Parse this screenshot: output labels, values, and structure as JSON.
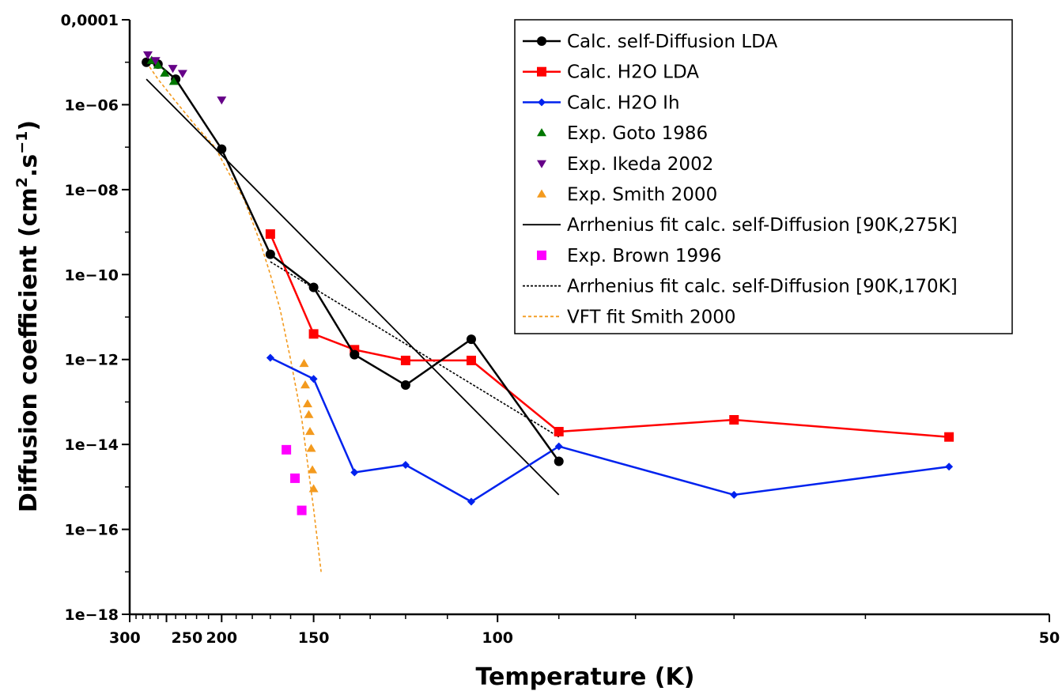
{
  "chart_data": {
    "type": "line",
    "title": "",
    "xlabel": "Temperature (K)",
    "ylabel": "Diffusion coefficient (cm²·s⁻¹)",
    "ylabel_parts": {
      "main": "Diffusion coefficient (cm",
      "sup1": "2",
      "mid": ".s",
      "sup2": "−1",
      "end": ")"
    },
    "x_scale": "reciprocal",
    "y_scale": "log",
    "xlim": [
      50,
      300
    ],
    "ylim": [
      1e-18,
      0.0001
    ],
    "x_ticks": [
      {
        "value": 300,
        "label": "300"
      },
      {
        "value": 250,
        "label": "250"
      },
      {
        "value": 200,
        "label": "200"
      },
      {
        "value": 150,
        "label": "150"
      },
      {
        "value": 100,
        "label": "100"
      },
      {
        "value": 50,
        "label": "50"
      }
    ],
    "x_minor_ticks": [
      290,
      280,
      270,
      260,
      240,
      230,
      220,
      210,
      190,
      180,
      170,
      160,
      140,
      130,
      120,
      110,
      90,
      80,
      70,
      60
    ],
    "y_ticks": [
      {
        "value": 0.0001,
        "label": "0,0001"
      },
      {
        "value": 1e-06,
        "label": "1e−06"
      },
      {
        "value": 1e-08,
        "label": "1e−08"
      },
      {
        "value": 1e-10,
        "label": "1e−10"
      },
      {
        "value": 1e-12,
        "label": "1e−12"
      },
      {
        "value": 1e-14,
        "label": "1e−14"
      },
      {
        "value": 1e-16,
        "label": "1e−16"
      },
      {
        "value": 1e-18,
        "label": "1e−18"
      }
    ],
    "legend_position": "top-right",
    "series": [
      {
        "name": "Calc. self-Diffusion LDA",
        "style": "line-marker",
        "color": "#000000",
        "marker": "circle",
        "dash": "none",
        "points": [
          [
            275,
            1e-05
          ],
          [
            260,
            9e-06
          ],
          [
            240,
            4e-06
          ],
          [
            200,
            9e-08
          ],
          [
            170,
            3e-10
          ],
          [
            150,
            5e-11
          ],
          [
            135,
            1.3e-12
          ],
          [
            120,
            2.5e-13
          ],
          [
            105,
            3e-12
          ],
          [
            90,
            4e-15
          ]
        ]
      },
      {
        "name": "Calc. H2O LDA",
        "style": "line-marker",
        "color": "#ff0000",
        "marker": "square",
        "dash": "none",
        "points": [
          [
            170,
            9e-10
          ],
          [
            150,
            4e-12
          ],
          [
            135,
            1.7e-12
          ],
          [
            120,
            9.5e-13
          ],
          [
            105,
            9.5e-13
          ],
          [
            90,
            2e-14
          ],
          [
            70,
            3.8e-14
          ],
          [
            55,
            1.5e-14
          ]
        ]
      },
      {
        "name": "Calc. H2O Ih",
        "style": "line-marker",
        "color": "#0022ee",
        "marker": "diamond",
        "dash": "none",
        "points": [
          [
            170,
            1.1e-12
          ],
          [
            150,
            3.5e-13
          ],
          [
            135,
            2.2e-15
          ],
          [
            120,
            3.3e-15
          ],
          [
            105,
            4.5e-16
          ],
          [
            90,
            9e-15
          ],
          [
            70,
            6.5e-16
          ],
          [
            55,
            3e-15
          ]
        ]
      },
      {
        "name": "Exp. Goto 1986",
        "style": "marker",
        "color": "#007700",
        "marker": "triangle-up",
        "dash": "none",
        "points": [
          [
            268,
            1.1e-05
          ],
          [
            260,
            8.5e-06
          ],
          [
            252,
            5.5e-06
          ],
          [
            242,
            3.5e-06
          ]
        ]
      },
      {
        "name": "Exp. Ikeda 2002",
        "style": "marker",
        "color": "#660088",
        "marker": "triangle-down",
        "dash": "none",
        "points": [
          [
            273,
            1.5e-05
          ],
          [
            263,
            1.1e-05
          ],
          [
            243,
            7.2e-06
          ],
          [
            233,
            5.5e-06
          ],
          [
            200,
            1.3e-06
          ]
        ]
      },
      {
        "name": "Exp. Smith 2000",
        "style": "marker",
        "color": "#f39a1e",
        "marker": "triangle-up",
        "dash": "none",
        "points": [
          [
            154,
            8e-13
          ],
          [
            153.5,
            2.5e-13
          ],
          [
            152.5,
            9e-14
          ],
          [
            152,
            5e-14
          ],
          [
            151.5,
            2e-14
          ],
          [
            151,
            8e-15
          ],
          [
            150.5,
            2.5e-15
          ],
          [
            150,
            9e-16
          ]
        ]
      },
      {
        "name": "Arrhenius fit calc. self-Diffusion [90K,275K]",
        "style": "line",
        "color": "#000000",
        "marker": "none",
        "dash": "none",
        "points": [
          [
            275,
            4e-06
          ],
          [
            90,
            6.5e-16
          ]
        ]
      },
      {
        "name": "Exp. Brown 1996",
        "style": "marker",
        "color": "#ff00ff",
        "marker": "square",
        "dash": "none",
        "points": [
          [
            162,
            7.5e-15
          ],
          [
            158,
            1.6e-15
          ],
          [
            155,
            2.8e-16
          ]
        ]
      },
      {
        "name": "Arrhenius fit calc. self-Diffusion [90K,170K]",
        "style": "line",
        "color": "#000000",
        "marker": "none",
        "dash": "3,2",
        "points": [
          [
            170,
            2e-10
          ],
          [
            90,
            1.5e-14
          ]
        ]
      },
      {
        "name": "VFT fit Smith 2000",
        "style": "line",
        "color": "#f39a1e",
        "marker": "none",
        "dash": "4,3",
        "points": [
          [
            275,
            1e-05
          ],
          [
            260,
            4e-06
          ],
          [
            240,
            1.2e-06
          ],
          [
            220,
            3e-07
          ],
          [
            205,
            1e-07
          ],
          [
            195,
            2.5e-08
          ],
          [
            185,
            6e-09
          ],
          [
            175,
            5e-10
          ],
          [
            170,
            1e-10
          ],
          [
            165,
            1.5e-11
          ],
          [
            160,
            1e-12
          ],
          [
            155,
            4e-14
          ],
          [
            150,
            3e-16
          ],
          [
            147,
            1e-17
          ]
        ]
      }
    ]
  }
}
